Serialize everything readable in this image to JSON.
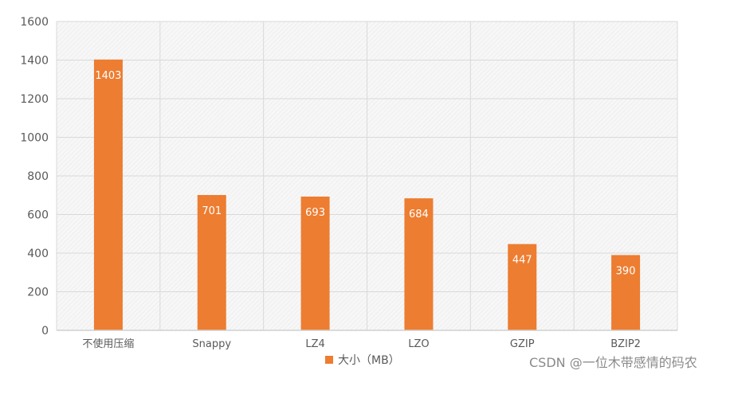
{
  "chart_data": {
    "type": "bar",
    "categories": [
      "不使用压缩",
      "Snappy",
      "LZ4",
      "LZO",
      "GZIP",
      "BZIP2"
    ],
    "series": [
      {
        "name": "大小（MB）",
        "values": [
          1403,
          701,
          693,
          684,
          447,
          390
        ],
        "color": "#ED7D31"
      }
    ],
    "title": "",
    "xlabel": "",
    "ylabel": "",
    "ylim": [
      0,
      1600
    ],
    "yticks": [
      0,
      200,
      400,
      600,
      800,
      1000,
      1200,
      1400,
      1600
    ],
    "grid": true,
    "legend": "bottom",
    "data_labels": true
  },
  "legend_label": "大小（MB）",
  "watermark": "CSDN @一位木带感情的码农"
}
